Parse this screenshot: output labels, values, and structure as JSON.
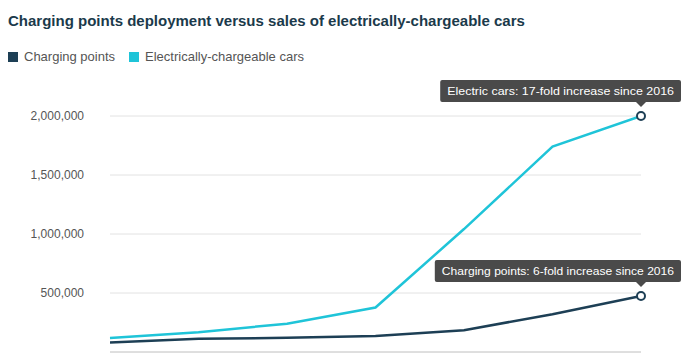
{
  "chart_data": {
    "type": "line",
    "title": "Charging points deployment versus sales of electrically-chargeable cars",
    "categories": [
      null,
      null,
      null,
      null,
      null,
      null,
      null
    ],
    "series": [
      {
        "name": "Charging points",
        "color": "#1d3f55",
        "values": [
          80000,
          112000,
          120000,
          136000,
          185000,
          320000,
          475000
        ]
      },
      {
        "name": "Electrically-chargeable cars",
        "color": "#1fc4d8",
        "values": [
          118000,
          168000,
          240000,
          377000,
          1042000,
          1740000,
          2000000
        ]
      }
    ],
    "ylim": [
      0,
      2000000
    ],
    "yticks": [
      {
        "value": 500000,
        "label": "500,000"
      },
      {
        "value": 1000000,
        "label": "1,000,000"
      },
      {
        "value": 1500000,
        "label": "1,500,000"
      },
      {
        "value": 2000000,
        "label": "2,000,000"
      }
    ],
    "grid": true,
    "tick_labels": "y",
    "legend": "top",
    "annotations": [
      {
        "text": "Electric cars: 17-fold increase since 2016",
        "series": "Electrically-chargeable cars"
      },
      {
        "text": "Charging points: 6-fold increase since 2016",
        "series": "Charging points"
      }
    ]
  }
}
